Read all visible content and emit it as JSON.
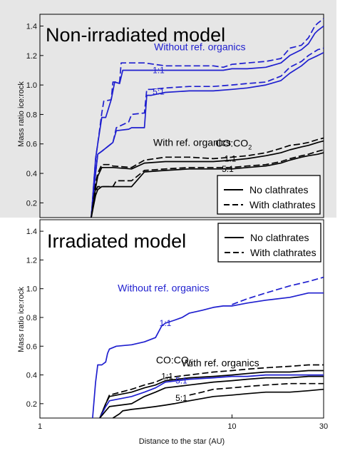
{
  "chart_data": [
    {
      "type": "line",
      "title": "Non-irradiated model",
      "xlabel": "",
      "ylabel": "Mass ratio ice:rock",
      "xscale": "log",
      "xlim": [
        1,
        30
      ],
      "ylim": [
        0.1,
        1.48
      ],
      "background": "#e6e6e6",
      "xticks": [],
      "yticks": [
        0.2,
        0.4,
        0.6,
        0.8,
        1.0,
        1.2,
        1.4
      ],
      "ytick_labels": [
        "0.2",
        "0.4",
        "0.6",
        "0.8",
        "1.0",
        "1.2",
        "1.4"
      ],
      "legend": {
        "placement": "bottom-right",
        "entries": [
          {
            "label": "No clathrates",
            "style": "solid"
          },
          {
            "label": "With clathrates",
            "style": "dashed"
          }
        ]
      },
      "annotations": [
        {
          "text": "Without ref. organics",
          "color": "#1f1fcf",
          "x": 6.8,
          "y": 1.255
        },
        {
          "text": "With ref. organics",
          "color": "#000000",
          "x": 6.2,
          "y": 0.605
        },
        {
          "text": "CO:CO",
          "sub": "2",
          "color": "#000000",
          "x": 10.2,
          "y": 0.6
        },
        {
          "text": "1:1",
          "color": "#1f1fcf",
          "x": 4.15,
          "y": 1.1
        },
        {
          "text": "5:1",
          "color": "#1f1fcf",
          "x": 4.15,
          "y": 0.955
        },
        {
          "text": "1:1",
          "color": "#000000",
          "x": 9.8,
          "y": 0.5
        },
        {
          "text": "5:1",
          "color": "#000000",
          "x": 9.5,
          "y": 0.43
        }
      ],
      "series": [
        {
          "color": "#1f1fcf",
          "style": "dashed",
          "x": [
            1.85,
            1.95,
            2.0,
            2.1,
            2.15,
            2.35,
            2.4,
            2.6,
            2.65,
            3.0,
            3.2,
            3.5,
            4.5,
            6,
            8,
            9,
            10,
            12,
            15,
            18,
            20,
            23,
            25,
            27,
            28,
            30
          ],
          "y": [
            0.1,
            0.5,
            0.6,
            0.81,
            0.89,
            0.9,
            1.02,
            1.02,
            1.15,
            1.15,
            1.15,
            1.15,
            1.13,
            1.13,
            1.13,
            1.12,
            1.14,
            1.15,
            1.16,
            1.18,
            1.25,
            1.27,
            1.32,
            1.4,
            1.42,
            1.45
          ]
        },
        {
          "color": "#1f1fcf",
          "style": "solid",
          "x": [
            1.85,
            1.95,
            2.0,
            2.1,
            2.2,
            2.35,
            2.45,
            2.6,
            2.7,
            3.0,
            3.2,
            3.5,
            4.5,
            6,
            8,
            9,
            10,
            12,
            15,
            18,
            20,
            23,
            25,
            27,
            28,
            30
          ],
          "y": [
            0.1,
            0.5,
            0.6,
            0.78,
            0.78,
            0.9,
            1.02,
            1.01,
            1.1,
            1.1,
            1.1,
            1.1,
            1.1,
            1.1,
            1.1,
            1.1,
            1.11,
            1.11,
            1.12,
            1.15,
            1.2,
            1.24,
            1.28,
            1.35,
            1.37,
            1.4
          ]
        },
        {
          "color": "#1f1fcf",
          "style": "dashed",
          "x": [
            1.85,
            1.95,
            2.0,
            2.1,
            2.4,
            2.5,
            2.9,
            3.0,
            3.5,
            3.6,
            3.8,
            4.5,
            6,
            8,
            10,
            12,
            15,
            18,
            20,
            23,
            25,
            28,
            30
          ],
          "y": [
            0.1,
            0.4,
            0.53,
            0.55,
            0.61,
            0.71,
            0.75,
            0.8,
            0.81,
            0.97,
            0.97,
            0.98,
            0.99,
            0.99,
            1.0,
            1.01,
            1.02,
            1.06,
            1.12,
            1.16,
            1.2,
            1.24,
            1.25
          ]
        },
        {
          "color": "#1f1fcf",
          "style": "solid",
          "x": [
            1.85,
            1.95,
            2.0,
            2.1,
            2.4,
            2.5,
            2.9,
            3.0,
            3.5,
            3.6,
            3.8,
            4.5,
            6,
            8,
            10,
            12,
            15,
            18,
            20,
            23,
            25,
            28,
            30
          ],
          "y": [
            0.1,
            0.4,
            0.53,
            0.55,
            0.61,
            0.69,
            0.7,
            0.71,
            0.71,
            0.93,
            0.93,
            0.95,
            0.96,
            0.96,
            0.97,
            0.98,
            1.0,
            1.03,
            1.08,
            1.13,
            1.17,
            1.2,
            1.22
          ]
        },
        {
          "color": "#000000",
          "style": "dashed",
          "x": [
            1.85,
            1.95,
            2.0,
            2.1,
            2.3,
            2.4,
            3.0,
            3.5,
            4.5,
            6,
            8,
            10,
            12,
            15,
            18,
            20,
            23,
            25,
            28,
            30
          ],
          "y": [
            0.1,
            0.33,
            0.4,
            0.46,
            0.46,
            0.45,
            0.44,
            0.49,
            0.51,
            0.51,
            0.5,
            0.51,
            0.52,
            0.54,
            0.57,
            0.59,
            0.6,
            0.61,
            0.63,
            0.64
          ]
        },
        {
          "color": "#000000",
          "style": "solid",
          "x": [
            1.85,
            1.95,
            2.0,
            2.1,
            2.3,
            2.4,
            3.0,
            3.5,
            4.5,
            6,
            8,
            10,
            12,
            15,
            18,
            20,
            23,
            25,
            28,
            30
          ],
          "y": [
            0.1,
            0.3,
            0.38,
            0.44,
            0.44,
            0.44,
            0.43,
            0.47,
            0.48,
            0.48,
            0.48,
            0.49,
            0.5,
            0.52,
            0.54,
            0.56,
            0.58,
            0.59,
            0.61,
            0.62
          ]
        },
        {
          "color": "#000000",
          "style": "dashed",
          "x": [
            1.85,
            1.95,
            2.0,
            2.1,
            2.4,
            2.5,
            3.0,
            3.5,
            4.5,
            6,
            8,
            10,
            12,
            15,
            18,
            20,
            23,
            25,
            28,
            30
          ],
          "y": [
            0.1,
            0.28,
            0.31,
            0.31,
            0.31,
            0.35,
            0.35,
            0.42,
            0.43,
            0.44,
            0.44,
            0.44,
            0.45,
            0.46,
            0.48,
            0.5,
            0.52,
            0.53,
            0.55,
            0.56
          ]
        },
        {
          "color": "#000000",
          "style": "solid",
          "x": [
            1.85,
            1.95,
            2.0,
            2.1,
            2.4,
            2.5,
            3.0,
            3.5,
            4.5,
            6,
            8,
            10,
            12,
            15,
            18,
            20,
            23,
            25,
            28,
            30
          ],
          "y": [
            0.1,
            0.25,
            0.29,
            0.31,
            0.31,
            0.31,
            0.31,
            0.41,
            0.42,
            0.43,
            0.43,
            0.43,
            0.44,
            0.45,
            0.47,
            0.49,
            0.51,
            0.52,
            0.53,
            0.54
          ]
        }
      ]
    },
    {
      "type": "line",
      "title": "Irradiated model",
      "xlabel": "Distance to the star  (AU)",
      "ylabel": "Mass ratio ice:rock",
      "xscale": "log",
      "xlim": [
        1,
        30
      ],
      "ylim": [
        0.1,
        1.48
      ],
      "background": "#ffffff",
      "xticks": [
        1,
        10,
        30
      ],
      "xtick_labels": [
        "1",
        "10",
        "30"
      ],
      "yticks": [
        0.2,
        0.4,
        0.6,
        0.8,
        1.0,
        1.2,
        1.4
      ],
      "ytick_labels": [
        "0.2",
        "0.4",
        "0.6",
        "0.8",
        "1.0",
        "1.2",
        "1.4"
      ],
      "legend": {
        "placement": "top-right",
        "entries": [
          {
            "label": "No clathrates",
            "style": "solid"
          },
          {
            "label": "With clathrates",
            "style": "dashed"
          }
        ]
      },
      "annotations": [
        {
          "text": "Without ref. organics",
          "color": "#1f1fcf",
          "x": 4.4,
          "y": 1.0
        },
        {
          "text": "With ref. organics",
          "color": "#000000",
          "x": 8.7,
          "y": 0.48
        },
        {
          "text": "CO:CO",
          "sub": "2",
          "color": "#000000",
          "x": 5.0,
          "y": 0.5
        },
        {
          "text": "1:1",
          "color": "#1f1fcf",
          "x": 4.5,
          "y": 0.76
        },
        {
          "text": "1:1",
          "color": "#000000",
          "x": 4.6,
          "y": 0.39
        },
        {
          "text": "5:1",
          "color": "#1f1fcf",
          "x": 5.45,
          "y": 0.36
        },
        {
          "text": "5:1",
          "color": "#000000",
          "x": 5.45,
          "y": 0.24
        }
      ],
      "series": [
        {
          "color": "#1f1fcf",
          "style": "solid",
          "x": [
            1.88,
            1.95,
            2.0,
            2.1,
            2.2,
            2.25,
            2.3,
            2.5,
            3.0,
            3.5,
            4.0,
            4.3,
            4.5,
            5.0,
            5.5,
            6,
            7,
            8,
            9,
            10,
            12,
            15,
            20,
            25,
            30
          ],
          "y": [
            0.1,
            0.35,
            0.47,
            0.47,
            0.49,
            0.55,
            0.58,
            0.6,
            0.61,
            0.63,
            0.66,
            0.74,
            0.76,
            0.78,
            0.8,
            0.83,
            0.85,
            0.87,
            0.88,
            0.88,
            0.9,
            0.92,
            0.94,
            0.97,
            0.97
          ]
        },
        {
          "color": "#1f1fcf",
          "style": "dashed",
          "x": [
            10,
            12,
            15,
            20,
            25,
            30
          ],
          "y": [
            0.89,
            0.93,
            0.97,
            1.02,
            1.05,
            1.08
          ]
        },
        {
          "color": "#000000",
          "style": "dashed",
          "x": [
            2.05,
            2.2,
            2.3,
            3.0,
            3.5,
            4.0,
            4.5,
            6,
            8,
            10,
            12,
            15,
            20,
            25,
            30
          ],
          "y": [
            0.1,
            0.2,
            0.26,
            0.3,
            0.33,
            0.35,
            0.38,
            0.4,
            0.42,
            0.43,
            0.44,
            0.45,
            0.46,
            0.47,
            0.47
          ]
        },
        {
          "color": "#000000",
          "style": "solid",
          "x": [
            2.05,
            2.2,
            2.3,
            3.0,
            3.5,
            4.0,
            4.5,
            6,
            8,
            10,
            12,
            15,
            20,
            25,
            30
          ],
          "y": [
            0.1,
            0.2,
            0.25,
            0.28,
            0.31,
            0.33,
            0.36,
            0.38,
            0.39,
            0.4,
            0.41,
            0.42,
            0.42,
            0.43,
            0.43
          ]
        },
        {
          "color": "#1f1fcf",
          "style": "solid",
          "x": [
            2.05,
            2.2,
            2.3,
            3.0,
            3.5,
            4.0,
            4.5,
            6,
            8,
            10,
            12,
            15,
            20,
            25,
            30
          ],
          "y": [
            0.1,
            0.18,
            0.22,
            0.25,
            0.28,
            0.31,
            0.35,
            0.37,
            0.38,
            0.39,
            0.39,
            0.4,
            0.4,
            0.4,
            0.4
          ]
        },
        {
          "color": "#000000",
          "style": "solid",
          "x": [
            2.05,
            2.2,
            2.3,
            3.0,
            3.5,
            4.0,
            4.5,
            6,
            8,
            10,
            12,
            15,
            20,
            25,
            30
          ],
          "y": [
            0.1,
            0.15,
            0.18,
            0.2,
            0.25,
            0.28,
            0.31,
            0.33,
            0.35,
            0.36,
            0.37,
            0.38,
            0.38,
            0.39,
            0.39
          ]
        },
        {
          "color": "#000000",
          "style": "dashed",
          "x": [
            6,
            7,
            8,
            10,
            12,
            15,
            20,
            25,
            30
          ],
          "y": [
            0.26,
            0.28,
            0.3,
            0.31,
            0.32,
            0.33,
            0.34,
            0.34,
            0.34
          ]
        },
        {
          "color": "#000000",
          "style": "solid",
          "x": [
            2.4,
            2.6,
            2.7,
            3.0,
            3.5,
            4.0,
            4.5,
            5.0,
            6,
            8,
            10,
            12,
            15,
            20,
            25,
            30
          ],
          "y": [
            0.1,
            0.13,
            0.15,
            0.16,
            0.17,
            0.18,
            0.19,
            0.2,
            0.22,
            0.25,
            0.26,
            0.27,
            0.28,
            0.28,
            0.29,
            0.3
          ]
        }
      ]
    }
  ]
}
